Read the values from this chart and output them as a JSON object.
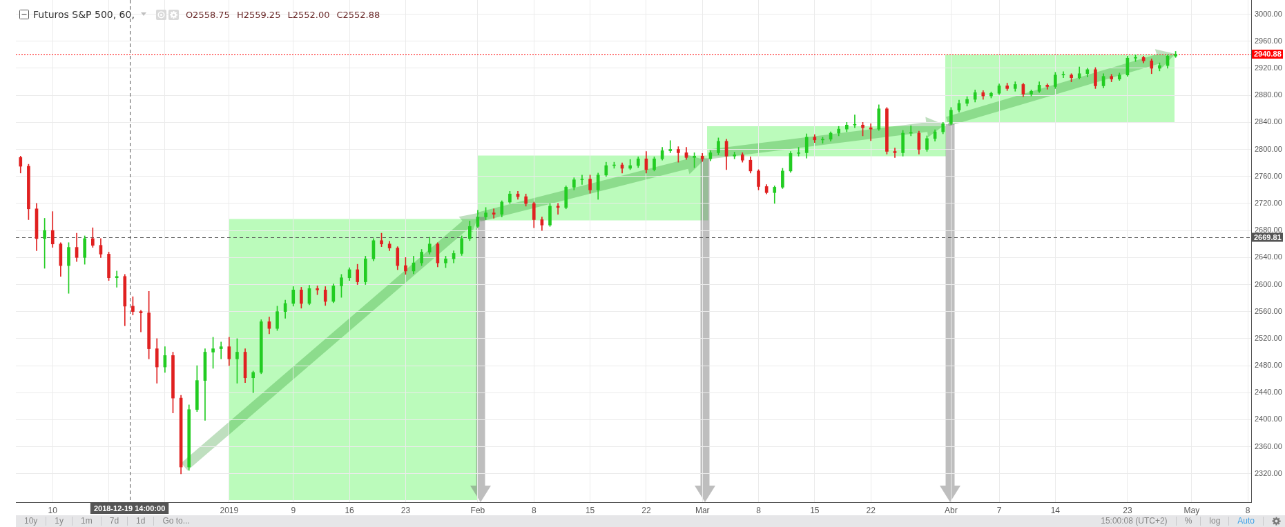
{
  "chart_data": {
    "type": "candlestick",
    "title": "Futuros S&P 500, 60,",
    "annotations": [
      "O2558.75",
      "H2559.25",
      "L2552.00",
      "C2552.88",
      "10y",
      "1y",
      "1m",
      "7d",
      "1d",
      "Go to...",
      "15:00:08 (UTC+2)",
      "%",
      "log",
      "Auto"
    ],
    "xlim": [
      "2018-12-05T10:00",
      "2019-05-08T10:00"
    ],
    "ylim": [
      2278,
      3021
    ],
    "xticks": [
      {
        "value": "2018-12-10",
        "label": "10"
      },
      {
        "value": "2018-12-17",
        "label": null
      },
      {
        "value": "2018-12-24",
        "label": null
      },
      {
        "value": "2019-01-01",
        "label": "2019"
      },
      {
        "value": "2019-01-09",
        "label": "9"
      },
      {
        "value": "2019-01-16",
        "label": "16"
      },
      {
        "value": "2019-01-23",
        "label": "23"
      },
      {
        "value": "2019-02-01",
        "label": "Feb"
      },
      {
        "value": "2019-02-08",
        "label": "8"
      },
      {
        "value": "2019-02-15",
        "label": "15"
      },
      {
        "value": "2019-02-22",
        "label": "22"
      },
      {
        "value": "2019-03-01",
        "label": "Mar"
      },
      {
        "value": "2019-03-08",
        "label": "8"
      },
      {
        "value": "2019-03-15",
        "label": "15"
      },
      {
        "value": "2019-03-22",
        "label": "22"
      },
      {
        "value": "2019-04-01",
        "label": "Abr"
      },
      {
        "value": "2019-04-07",
        "label": "7"
      },
      {
        "value": "2019-04-14",
        "label": "14"
      },
      {
        "value": "2019-04-23",
        "label": "23"
      },
      {
        "value": "2019-05-01",
        "label": "May"
      },
      {
        "value": "2019-05-08",
        "label": "8"
      }
    ],
    "yticks": [
      {
        "value": 2320,
        "label": "2320.00"
      },
      {
        "value": 2360,
        "label": "2360.00"
      },
      {
        "value": 2400,
        "label": "2400.00"
      },
      {
        "value": 2440,
        "label": "2440.00"
      },
      {
        "value": 2480,
        "label": "2480.00"
      },
      {
        "value": 2520,
        "label": "2520.00"
      },
      {
        "value": 2560,
        "label": "2560.00"
      },
      {
        "value": 2600,
        "label": "2600.00"
      },
      {
        "value": 2640,
        "label": "2640.00"
      },
      {
        "value": 2680,
        "label": "2680.00"
      },
      {
        "value": 2720,
        "label": "2720.00"
      },
      {
        "value": 2760,
        "label": "2760.00"
      },
      {
        "value": 2800,
        "label": "2800.00"
      },
      {
        "value": 2840,
        "label": "2840.00"
      },
      {
        "value": 2880,
        "label": "2880.00"
      },
      {
        "value": 2920,
        "label": "2920.00"
      },
      {
        "value": 2960,
        "label": "2960.00"
      },
      {
        "value": 3000,
        "label": "3000.00"
      }
    ],
    "grid": true,
    "ref_lines": [
      {
        "axis": "y",
        "value": 2940.88,
        "label": "2940.88",
        "color": "#ff0000",
        "line_style": "dotted"
      },
      {
        "axis": "y",
        "value": 2669.81,
        "label": "2669.81",
        "color": "#555555",
        "line_style": "dashed"
      },
      {
        "axis": "x",
        "value": "2018-12-19T14:00",
        "label": "2018-12-19 14:00:00",
        "color": "#555555",
        "line_style": "dashed"
      }
    ],
    "x": [
      "2018-12-06",
      "2018-12-07",
      "2018-12-08",
      "2018-12-09",
      "2018-12-10",
      "2018-12-11",
      "2018-12-12",
      "2018-12-13",
      "2018-12-14",
      "2018-12-15",
      "2018-12-16",
      "2018-12-17",
      "2018-12-18",
      "2018-12-19",
      "2018-12-20",
      "2018-12-21",
      "2018-12-22",
      "2018-12-23",
      "2018-12-24",
      "2018-12-25",
      "2018-12-26",
      "2018-12-27",
      "2018-12-28",
      "2018-12-29",
      "2018-12-30",
      "2018-12-31",
      "2019-01-01",
      "2019-01-02",
      "2019-01-03",
      "2019-01-04",
      "2019-01-05",
      "2019-01-06",
      "2019-01-07",
      "2019-01-08",
      "2019-01-09",
      "2019-01-10",
      "2019-01-11",
      "2019-01-12",
      "2019-01-13",
      "2019-01-14",
      "2019-01-15",
      "2019-01-16",
      "2019-01-17",
      "2019-01-18",
      "2019-01-19",
      "2019-01-20",
      "2019-01-21",
      "2019-01-22",
      "2019-01-23",
      "2019-01-24",
      "2019-01-25",
      "2019-01-26",
      "2019-01-27",
      "2019-01-28",
      "2019-01-29",
      "2019-01-30",
      "2019-01-31",
      "2019-02-01",
      "2019-02-02",
      "2019-02-03",
      "2019-02-04",
      "2019-02-05",
      "2019-02-06",
      "2019-02-07",
      "2019-02-08",
      "2019-02-09",
      "2019-02-10",
      "2019-02-11",
      "2019-02-12",
      "2019-02-13",
      "2019-02-14",
      "2019-02-15",
      "2019-02-16",
      "2019-02-17",
      "2019-02-18",
      "2019-02-19",
      "2019-02-20",
      "2019-02-21",
      "2019-02-22",
      "2019-02-23",
      "2019-02-24",
      "2019-02-25",
      "2019-02-26",
      "2019-02-27",
      "2019-02-28",
      "2019-03-01",
      "2019-03-02",
      "2019-03-03",
      "2019-03-04",
      "2019-03-05",
      "2019-03-06",
      "2019-03-07",
      "2019-03-08",
      "2019-03-09",
      "2019-03-10",
      "2019-03-11",
      "2019-03-12",
      "2019-03-13",
      "2019-03-14",
      "2019-03-15",
      "2019-03-16",
      "2019-03-17",
      "2019-03-18",
      "2019-03-19",
      "2019-03-20",
      "2019-03-21",
      "2019-03-22",
      "2019-03-23",
      "2019-03-24",
      "2019-03-25",
      "2019-03-26",
      "2019-03-27",
      "2019-03-28",
      "2019-03-29",
      "2019-03-30",
      "2019-03-31",
      "2019-04-01",
      "2019-04-02",
      "2019-04-03",
      "2019-04-04",
      "2019-04-05",
      "2019-04-06",
      "2019-04-07",
      "2019-04-08",
      "2019-04-09",
      "2019-04-10",
      "2019-04-11",
      "2019-04-12",
      "2019-04-13",
      "2019-04-14",
      "2019-04-15",
      "2019-04-16",
      "2019-04-17",
      "2019-04-18",
      "2019-04-19",
      "2019-04-20",
      "2019-04-21",
      "2019-04-22",
      "2019-04-23",
      "2019-04-24",
      "2019-04-25",
      "2019-04-26",
      "2019-04-27",
      "2019-04-28",
      "2019-04-29"
    ],
    "ohlc": [
      [
        2788,
        2790,
        2765,
        2775
      ],
      [
        2775,
        2778,
        2696,
        2712
      ],
      [
        2712,
        2720,
        2650,
        2668
      ],
      [
        2668,
        2698,
        2624,
        2680
      ],
      [
        2680,
        2708,
        2655,
        2660
      ],
      [
        2660,
        2662,
        2612,
        2628
      ],
      [
        2628,
        2662,
        2587,
        2655
      ],
      [
        2655,
        2676,
        2634,
        2640
      ],
      [
        2640,
        2672,
        2630,
        2668
      ],
      [
        2668,
        2684,
        2655,
        2658
      ],
      [
        2658,
        2668,
        2640,
        2645
      ],
      [
        2645,
        2648,
        2606,
        2610
      ],
      [
        2610,
        2620,
        2596,
        2612
      ],
      [
        2612,
        2615,
        2539,
        2568
      ],
      [
        2568,
        2582,
        2555,
        2560
      ],
      [
        2560,
        2562,
        2530,
        2558
      ],
      [
        2558,
        2590,
        2490,
        2505
      ],
      [
        2505,
        2520,
        2454,
        2478
      ],
      [
        2478,
        2508,
        2470,
        2495
      ],
      [
        2495,
        2500,
        2410,
        2432
      ],
      [
        2432,
        2436,
        2320,
        2330
      ],
      [
        2330,
        2422,
        2325,
        2415
      ],
      [
        2415,
        2480,
        2412,
        2458
      ],
      [
        2458,
        2505,
        2399,
        2500
      ],
      [
        2500,
        2522,
        2476,
        2505
      ],
      [
        2505,
        2515,
        2490,
        2508
      ],
      [
        2508,
        2522,
        2480,
        2490
      ],
      [
        2490,
        2520,
        2454,
        2500
      ],
      [
        2500,
        2505,
        2455,
        2462
      ],
      [
        2462,
        2472,
        2440,
        2470
      ],
      [
        2470,
        2548,
        2468,
        2545
      ],
      [
        2545,
        2552,
        2527,
        2535
      ],
      [
        2535,
        2568,
        2532,
        2560
      ],
      [
        2560,
        2577,
        2550,
        2572
      ],
      [
        2572,
        2597,
        2568,
        2592
      ],
      [
        2592,
        2596,
        2565,
        2572
      ],
      [
        2572,
        2599,
        2570,
        2594
      ],
      [
        2594,
        2598,
        2585,
        2592
      ],
      [
        2592,
        2597,
        2569,
        2575
      ],
      [
        2575,
        2601,
        2573,
        2598
      ],
      [
        2598,
        2615,
        2581,
        2610
      ],
      [
        2610,
        2625,
        2606,
        2622
      ],
      [
        2622,
        2630,
        2600,
        2604
      ],
      [
        2604,
        2642,
        2600,
        2638
      ],
      [
        2638,
        2668,
        2635,
        2665
      ],
      [
        2665,
        2676,
        2656,
        2660
      ],
      [
        2660,
        2664,
        2650,
        2654
      ],
      [
        2654,
        2656,
        2622,
        2628
      ],
      [
        2628,
        2640,
        2615,
        2620
      ],
      [
        2620,
        2642,
        2616,
        2632
      ],
      [
        2632,
        2652,
        2628,
        2648
      ],
      [
        2648,
        2670,
        2645,
        2660
      ],
      [
        2660,
        2662,
        2626,
        2632
      ],
      [
        2632,
        2642,
        2625,
        2638
      ],
      [
        2638,
        2650,
        2632,
        2646
      ],
      [
        2646,
        2672,
        2643,
        2668
      ],
      [
        2668,
        2694,
        2665,
        2686
      ],
      [
        2686,
        2710,
        2684,
        2700
      ],
      [
        2700,
        2714,
        2696,
        2706
      ],
      [
        2706,
        2712,
        2698,
        2704
      ],
      [
        2704,
        2724,
        2700,
        2722
      ],
      [
        2722,
        2738,
        2720,
        2734
      ],
      [
        2734,
        2738,
        2726,
        2730
      ],
      [
        2730,
        2734,
        2716,
        2720
      ],
      [
        2720,
        2722,
        2684,
        2696
      ],
      [
        2696,
        2700,
        2680,
        2688
      ],
      [
        2688,
        2720,
        2686,
        2716
      ],
      [
        2716,
        2720,
        2704,
        2714
      ],
      [
        2714,
        2746,
        2712,
        2744
      ],
      [
        2744,
        2758,
        2740,
        2755
      ],
      [
        2755,
        2762,
        2748,
        2756
      ],
      [
        2756,
        2762,
        2735,
        2740
      ],
      [
        2740,
        2765,
        2726,
        2762
      ],
      [
        2762,
        2781,
        2760,
        2776
      ],
      [
        2776,
        2781,
        2772,
        2777
      ],
      [
        2777,
        2780,
        2765,
        2772
      ],
      [
        2772,
        2785,
        2770,
        2776
      ],
      [
        2776,
        2789,
        2773,
        2786
      ],
      [
        2786,
        2797,
        2765,
        2770
      ],
      [
        2770,
        2789,
        2768,
        2786
      ],
      [
        2786,
        2803,
        2784,
        2798
      ],
      [
        2798,
        2813,
        2795,
        2800
      ],
      [
        2800,
        2804,
        2781,
        2795
      ],
      [
        2795,
        2803,
        2785,
        2788
      ],
      [
        2788,
        2795,
        2773,
        2790
      ],
      [
        2790,
        2794,
        2782,
        2786
      ],
      [
        2786,
        2798,
        2783,
        2795
      ],
      [
        2795,
        2817,
        2792,
        2812
      ],
      [
        2812,
        2815,
        2770,
        2790
      ],
      [
        2790,
        2796,
        2786,
        2792
      ],
      [
        2792,
        2795,
        2781,
        2784
      ],
      [
        2784,
        2789,
        2765,
        2768
      ],
      [
        2768,
        2770,
        2740,
        2745
      ],
      [
        2745,
        2748,
        2734,
        2736
      ],
      [
        2736,
        2746,
        2720,
        2744
      ],
      [
        2744,
        2772,
        2742,
        2768
      ],
      [
        2768,
        2797,
        2766,
        2794
      ],
      [
        2794,
        2803,
        2790,
        2795
      ],
      [
        2795,
        2823,
        2787,
        2818
      ],
      [
        2818,
        2822,
        2810,
        2814
      ],
      [
        2814,
        2818,
        2809,
        2815
      ],
      [
        2815,
        2826,
        2812,
        2824
      ],
      [
        2824,
        2834,
        2820,
        2830
      ],
      [
        2830,
        2840,
        2826,
        2836
      ],
      [
        2836,
        2851,
        2832,
        2836
      ],
      [
        2836,
        2840,
        2820,
        2832
      ],
      [
        2832,
        2838,
        2813,
        2830
      ],
      [
        2830,
        2866,
        2828,
        2860
      ],
      [
        2860,
        2862,
        2793,
        2797
      ],
      [
        2797,
        2802,
        2788,
        2795
      ],
      [
        2795,
        2828,
        2790,
        2824
      ],
      [
        2824,
        2835,
        2820,
        2824
      ],
      [
        2824,
        2827,
        2793,
        2800
      ],
      [
        2800,
        2820,
        2797,
        2816
      ],
      [
        2816,
        2829,
        2812,
        2826
      ],
      [
        2826,
        2840,
        2823,
        2838
      ],
      [
        2838,
        2862,
        2836,
        2858
      ],
      [
        2858,
        2873,
        2855,
        2868
      ],
      [
        2868,
        2878,
        2864,
        2874
      ],
      [
        2874,
        2888,
        2870,
        2884
      ],
      [
        2884,
        2887,
        2874,
        2879
      ],
      [
        2879,
        2885,
        2876,
        2883
      ],
      [
        2883,
        2897,
        2881,
        2894
      ],
      [
        2894,
        2898,
        2887,
        2890
      ],
      [
        2890,
        2900,
        2886,
        2896
      ],
      [
        2896,
        2898,
        2878,
        2882
      ],
      [
        2882,
        2888,
        2879,
        2886
      ],
      [
        2886,
        2900,
        2884,
        2895
      ],
      [
        2895,
        2897,
        2889,
        2893
      ],
      [
        2893,
        2914,
        2890,
        2910
      ],
      [
        2910,
        2915,
        2906,
        2910
      ],
      [
        2910,
        2912,
        2900,
        2906
      ],
      [
        2906,
        2922,
        2904,
        2912
      ],
      [
        2912,
        2920,
        2907,
        2918
      ],
      [
        2918,
        2921,
        2890,
        2894
      ],
      [
        2894,
        2912,
        2891,
        2908
      ],
      [
        2908,
        2911,
        2900,
        2904
      ],
      [
        2904,
        2913,
        2902,
        2910
      ],
      [
        2910,
        2938,
        2908,
        2935
      ],
      [
        2935,
        2940,
        2930,
        2936
      ],
      [
        2936,
        2938,
        2928,
        2931
      ],
      [
        2931,
        2934,
        2912,
        2920
      ],
      [
        2920,
        2928,
        2916,
        2924
      ],
      [
        2924,
        2940,
        2920,
        2938
      ],
      [
        2938,
        2945,
        2936,
        2940.88
      ]
    ],
    "colors": [
      "#e02020",
      "#e02020",
      "#e02020",
      "#22cc22",
      "#e02020",
      "#e02020",
      "#22cc22",
      "#e02020",
      "#22cc22",
      "#e02020",
      "#e02020",
      "#e02020",
      "#22cc22",
      "#e02020",
      "#e02020",
      "#e02020",
      "#e02020",
      "#e02020",
      "#22cc22",
      "#e02020",
      "#e02020",
      "#22cc22",
      "#22cc22",
      "#22cc22",
      "#22cc22",
      "#22cc22",
      "#e02020",
      "#22cc22",
      "#e02020",
      "#22cc22",
      "#22cc22",
      "#e02020",
      "#22cc22",
      "#22cc22",
      "#22cc22",
      "#e02020",
      "#22cc22",
      "#e02020",
      "#e02020",
      "#22cc22",
      "#22cc22",
      "#22cc22",
      "#e02020",
      "#22cc22",
      "#22cc22",
      "#e02020",
      "#e02020",
      "#e02020",
      "#e02020",
      "#22cc22",
      "#22cc22",
      "#22cc22",
      "#e02020",
      "#22cc22",
      "#22cc22",
      "#22cc22",
      "#22cc22",
      "#22cc22",
      "#22cc22",
      "#e02020",
      "#22cc22",
      "#22cc22",
      "#e02020",
      "#e02020",
      "#e02020",
      "#e02020",
      "#22cc22",
      "#e02020",
      "#22cc22",
      "#22cc22",
      "#22cc22",
      "#e02020",
      "#22cc22",
      "#22cc22",
      "#22cc22",
      "#e02020",
      "#22cc22",
      "#22cc22",
      "#e02020",
      "#22cc22",
      "#22cc22",
      "#22cc22",
      "#e02020",
      "#e02020",
      "#22cc22",
      "#e02020",
      "#22cc22",
      "#22cc22",
      "#e02020",
      "#22cc22",
      "#e02020",
      "#e02020",
      "#e02020",
      "#e02020",
      "#22cc22",
      "#22cc22",
      "#22cc22",
      "#22cc22",
      "#22cc22",
      "#e02020",
      "#22cc22",
      "#22cc22",
      "#22cc22",
      "#22cc22",
      "#22cc22",
      "#e02020",
      "#e02020",
      "#22cc22",
      "#e02020",
      "#e02020",
      "#22cc22",
      "#22cc22",
      "#e02020",
      "#22cc22",
      "#22cc22",
      "#22cc22",
      "#22cc22",
      "#22cc22",
      "#22cc22",
      "#22cc22",
      "#e02020",
      "#22cc22",
      "#22cc22",
      "#e02020",
      "#22cc22",
      "#e02020",
      "#22cc22",
      "#22cc22",
      "#e02020",
      "#22cc22",
      "#22cc22",
      "#e02020",
      "#22cc22",
      "#22cc22",
      "#e02020",
      "#22cc22",
      "#e02020",
      "#22cc22",
      "#22cc22",
      "#22cc22",
      "#e02020",
      "#e02020",
      "#22cc22",
      "#22cc22",
      "#22cc22"
    ]
  }
}
